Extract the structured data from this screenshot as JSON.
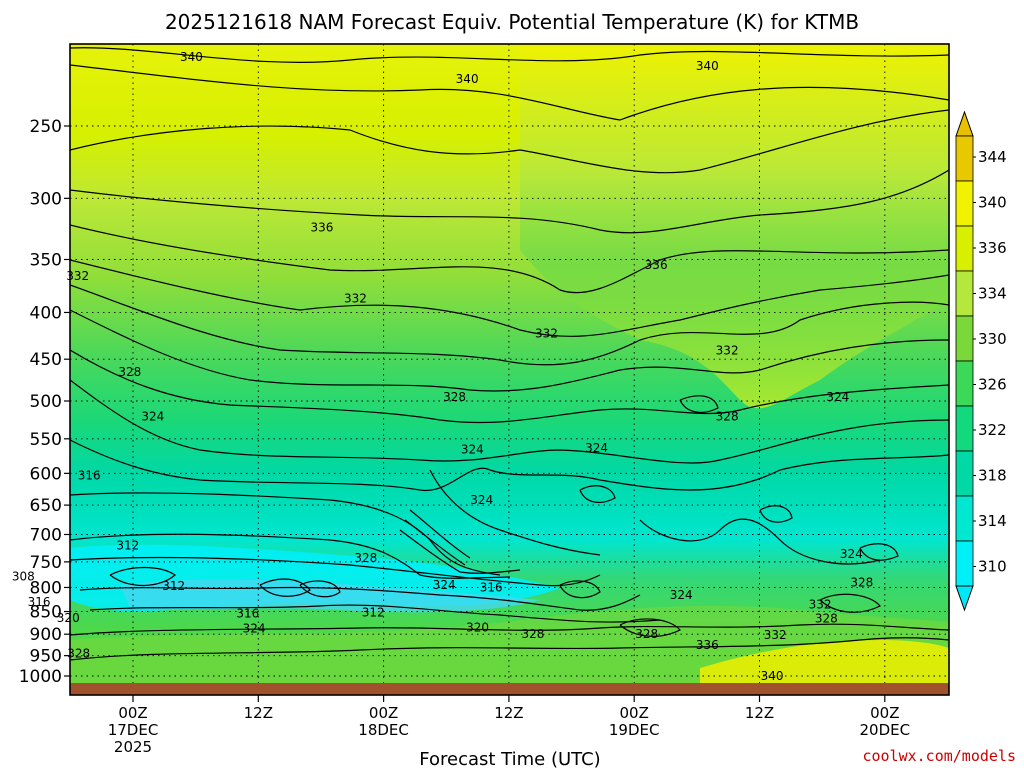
{
  "chart_data": {
    "type": "heatmap",
    "title": "2025121618 NAM Forecast Equiv. Potential Temperature (K) for KTMB",
    "xlabel": "Forecast Time (UTC)",
    "ylabel": "",
    "y_ticks": [
      "250",
      "300",
      "350",
      "400",
      "450",
      "500",
      "550",
      "600",
      "650",
      "700",
      "750",
      "800",
      "850",
      "900",
      "950",
      "1000"
    ],
    "y_scale": "log-pressure",
    "x_ticks": [
      {
        "lines": [
          "00Z",
          "17DEC",
          "2025"
        ]
      },
      {
        "lines": [
          "12Z"
        ]
      },
      {
        "lines": [
          "00Z",
          "18DEC"
        ]
      },
      {
        "lines": [
          "12Z"
        ]
      },
      {
        "lines": [
          "00Z",
          "19DEC"
        ]
      },
      {
        "lines": [
          "12Z"
        ]
      },
      {
        "lines": [
          "00Z",
          "20DEC"
        ]
      }
    ],
    "colorbar": {
      "labels": [
        "344",
        "340",
        "336",
        "334",
        "330",
        "326",
        "322",
        "318",
        "314",
        "310"
      ],
      "colors": [
        "#e8c800",
        "#f2f200",
        "#d8f000",
        "#b4e83c",
        "#7ad83a",
        "#3cd858",
        "#12d87e",
        "#00d8a6",
        "#00e8d2",
        "#00f0f8"
      ]
    },
    "contour_labels": [
      {
        "text": "340",
        "x": 5.6,
        "p": 210
      },
      {
        "text": "340",
        "x": 32.0,
        "p": 222
      },
      {
        "text": "340",
        "x": 55.0,
        "p": 215
      },
      {
        "text": "336",
        "x": 18.1,
        "p": 323
      },
      {
        "text": "336",
        "x": 50.1,
        "p": 355
      },
      {
        "text": "332",
        "x": -5.3,
        "p": 365
      },
      {
        "text": "332",
        "x": 21.3,
        "p": 386
      },
      {
        "text": "332",
        "x": 39.6,
        "p": 422
      },
      {
        "text": "332",
        "x": 56.9,
        "p": 440
      },
      {
        "text": "328",
        "x": -0.3,
        "p": 465
      },
      {
        "text": "328",
        "x": 30.8,
        "p": 495
      },
      {
        "text": "328",
        "x": 56.9,
        "p": 520
      },
      {
        "text": "324",
        "x": 1.9,
        "p": 520
      },
      {
        "text": "324",
        "x": 32.5,
        "p": 565
      },
      {
        "text": "324",
        "x": 44.4,
        "p": 563
      },
      {
        "text": "324",
        "x": 67.5,
        "p": 495
      },
      {
        "text": "324",
        "x": 33.4,
        "p": 642
      },
      {
        "text": "316",
        "x": -4.2,
        "p": 603
      },
      {
        "text": "312",
        "x": -0.5,
        "p": 720
      },
      {
        "text": "308",
        "x": -10.5,
        "p": 778
      },
      {
        "text": "312",
        "x": 3.9,
        "p": 797
      },
      {
        "text": "316",
        "x": -9.0,
        "p": 830
      },
      {
        "text": "320",
        "x": -6.2,
        "p": 864
      },
      {
        "text": "316",
        "x": 11.0,
        "p": 854
      },
      {
        "text": "312",
        "x": 23.0,
        "p": 852
      },
      {
        "text": "328",
        "x": 22.3,
        "p": 743
      },
      {
        "text": "324",
        "x": 29.8,
        "p": 795
      },
      {
        "text": "316",
        "x": 34.3,
        "p": 800
      },
      {
        "text": "320",
        "x": 33.0,
        "p": 885
      },
      {
        "text": "328",
        "x": 38.3,
        "p": 900
      },
      {
        "text": "324",
        "x": 11.6,
        "p": 887
      },
      {
        "text": "328",
        "x": -5.2,
        "p": 945
      },
      {
        "text": "324",
        "x": 52.5,
        "p": 815
      },
      {
        "text": "328",
        "x": 49.2,
        "p": 900
      },
      {
        "text": "336",
        "x": 55.0,
        "p": 925
      },
      {
        "text": "332",
        "x": 61.5,
        "p": 902
      },
      {
        "text": "332",
        "x": 65.8,
        "p": 835
      },
      {
        "text": "328",
        "x": 66.4,
        "p": 865
      },
      {
        "text": "328",
        "x": 69.8,
        "p": 790
      },
      {
        "text": "324",
        "x": 68.8,
        "p": 735
      },
      {
        "text": "340",
        "x": 61.2,
        "p": 1000
      }
    ]
  },
  "credit": "coolwx.com/models"
}
